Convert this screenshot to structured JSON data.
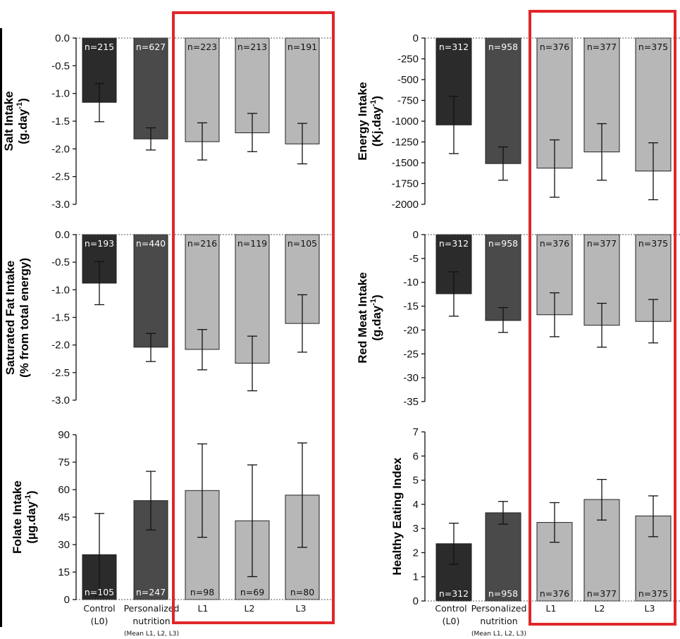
{
  "chart_data": [
    {
      "type": "bar",
      "ylabel_lines": [
        "Salt Intake",
        "(g.day-1)"
      ],
      "ylim": [
        -3.0,
        0.0
      ],
      "yticks": [
        0.0,
        -0.5,
        -1.0,
        -1.5,
        -2.0,
        -2.5,
        -3.0
      ],
      "tick_labels": [
        "0.0",
        "-0.5",
        "-1.0",
        "-1.5",
        "-2.0",
        "-2.5",
        "-3.0"
      ],
      "values": [
        -1.16,
        -1.82,
        -1.87,
        -1.71,
        -1.91
      ],
      "err_low": [
        -1.51,
        -2.02,
        -2.2,
        -2.05,
        -2.27
      ],
      "err_high": [
        -0.82,
        -1.62,
        -1.53,
        -1.36,
        -1.54
      ],
      "n_labels": [
        "n=215",
        "n=627",
        "n=223",
        "n=213",
        "n=191"
      ]
    },
    {
      "type": "bar",
      "ylabel_lines": [
        "Energy Intake",
        "(Kj.day-1)"
      ],
      "ylim": [
        -2000,
        0
      ],
      "yticks": [
        0,
        -250,
        -500,
        -750,
        -1000,
        -1250,
        -1500,
        -1750,
        -2000
      ],
      "tick_labels": [
        "0",
        "-250",
        "-500",
        "-750",
        "-1000",
        "-1250",
        "-1500",
        "-1750",
        "-2000"
      ],
      "values": [
        -1045,
        -1510,
        -1565,
        -1370,
        -1600
      ],
      "err_low": [
        -1390,
        -1710,
        -1915,
        -1710,
        -1945
      ],
      "err_high": [
        -700,
        -1310,
        -1225,
        -1030,
        -1260
      ],
      "n_labels": [
        "n=312",
        "n=958",
        "n=376",
        "n=377",
        "n=375"
      ]
    },
    {
      "type": "bar",
      "ylabel_lines": [
        "Saturated Fat Intake",
        "(% from total energy)"
      ],
      "ylim": [
        -3.0,
        0.0
      ],
      "yticks": [
        0.0,
        -0.5,
        -1.0,
        -1.5,
        -2.0,
        -2.5,
        -3.0
      ],
      "tick_labels": [
        "0.0",
        "-0.5",
        "-1.0",
        "-1.5",
        "-2.0",
        "-2.5",
        "-3.0"
      ],
      "values": [
        -0.88,
        -2.04,
        -2.08,
        -2.33,
        -1.61
      ],
      "err_low": [
        -1.27,
        -2.3,
        -2.45,
        -2.83,
        -2.13
      ],
      "err_high": [
        -0.49,
        -1.79,
        -1.72,
        -1.84,
        -1.09
      ],
      "n_labels": [
        "n=193",
        "n=440",
        "n=216",
        "n=119",
        "n=105"
      ]
    },
    {
      "type": "bar",
      "ylabel_lines": [
        "Red Meat Intake",
        "(g.day-1)"
      ],
      "ylim": [
        -35,
        0
      ],
      "yticks": [
        0,
        -5,
        -10,
        -15,
        -20,
        -25,
        -30,
        -35
      ],
      "tick_labels": [
        "0",
        "-5",
        "-10",
        "-15",
        "-20",
        "-25",
        "-30",
        "-35"
      ],
      "values": [
        -12.4,
        -18.0,
        -16.8,
        -19.0,
        -18.2
      ],
      "err_low": [
        -17.1,
        -20.5,
        -21.4,
        -23.6,
        -22.7
      ],
      "err_high": [
        -7.8,
        -15.3,
        -12.2,
        -14.4,
        -13.6
      ],
      "n_labels": [
        "n=312",
        "n=958",
        "n=376",
        "n=377",
        "n=375"
      ]
    },
    {
      "type": "bar",
      "ylabel_lines": [
        "Folate Intake",
        "(µg.day-1)"
      ],
      "ylim": [
        0,
        90
      ],
      "yticks": [
        0,
        15,
        30,
        45,
        60,
        75,
        90
      ],
      "tick_labels": [
        "0",
        "15",
        "30",
        "45",
        "60",
        "75",
        "90"
      ],
      "values": [
        24.5,
        54.0,
        59.5,
        43.0,
        57.0
      ],
      "err_low": [
        2.0,
        38.0,
        34.0,
        12.5,
        28.5
      ],
      "err_high": [
        47.0,
        70.0,
        85.0,
        73.5,
        85.5
      ],
      "n_labels": [
        "n=105",
        "n=247",
        "n=98",
        "n=69",
        "n=80"
      ],
      "categories": [
        "Control (L0)",
        "Personalized nutrition",
        "L1",
        "L2",
        "L3"
      ]
    },
    {
      "type": "bar",
      "ylabel_lines": [
        "Healthy Eating Index"
      ],
      "ylim": [
        0,
        7
      ],
      "yticks": [
        0,
        1,
        2,
        3,
        4,
        5,
        6,
        7
      ],
      "tick_labels": [
        "0",
        "1",
        "2",
        "3",
        "4",
        "5",
        "6",
        "7"
      ],
      "values": [
        2.37,
        3.65,
        3.25,
        4.2,
        3.52
      ],
      "err_low": [
        1.52,
        3.18,
        2.43,
        3.35,
        2.66
      ],
      "err_high": [
        3.22,
        4.12,
        4.07,
        5.03,
        4.35
      ],
      "n_labels": [
        "n=312",
        "n=958",
        "n=376",
        "n=377",
        "n=375"
      ],
      "categories": [
        "Control (L0)",
        "Personalized nutrition",
        "L1",
        "L2",
        "L3"
      ]
    }
  ],
  "xaxis": {
    "cat0_line1": "Control",
    "cat0_line2": "(L0)",
    "cat1_line1": "Personalized",
    "cat1_line2": "nutrition",
    "cat1_line3": "(Mean L1, L2, L3)",
    "cat2": "L1",
    "cat3": "L2",
    "cat4": "L3"
  },
  "colors": {
    "control": "#2b2b2b",
    "personalized": "#4a4a4a",
    "levels": "#b7b7b7",
    "highlight_box": "#e0262a",
    "n_dark": "#ffffff",
    "n_light": "#111111"
  }
}
